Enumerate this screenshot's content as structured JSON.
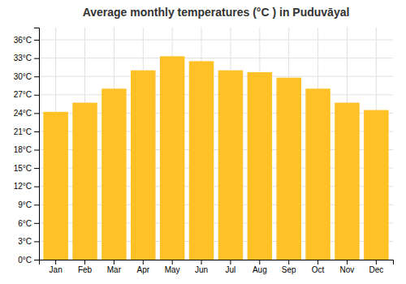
{
  "chart_data": {
    "type": "bar",
    "title": "Average monthly temperatures (°C ) in Puduvāyal",
    "categories": [
      "Jan",
      "Feb",
      "Mar",
      "Apr",
      "May",
      "Jun",
      "Jul",
      "Aug",
      "Sep",
      "Oct",
      "Nov",
      "Dec"
    ],
    "values": [
      24.2,
      25.7,
      28.0,
      31.0,
      33.3,
      32.5,
      31.0,
      30.7,
      29.8,
      28.0,
      25.7,
      24.5
    ],
    "color": "#FFC125",
    "ylim": [
      0,
      38
    ],
    "yticks": [
      {
        "value": 0,
        "label": "0°C"
      },
      {
        "value": 3,
        "label": "3°C"
      },
      {
        "value": 6,
        "label": "6°C"
      },
      {
        "value": 9,
        "label": "9°C"
      },
      {
        "value": 12,
        "label": "12°C"
      },
      {
        "value": 15,
        "label": "15°C"
      },
      {
        "value": 18,
        "label": "18°C"
      },
      {
        "value": 21,
        "label": "21°C"
      },
      {
        "value": 24,
        "label": "24°C"
      },
      {
        "value": 27,
        "label": "27°C"
      },
      {
        "value": 30,
        "label": "30°C"
      },
      {
        "value": 33,
        "label": "33°C"
      },
      {
        "value": 36,
        "label": "36°C"
      }
    ],
    "grid": true
  }
}
